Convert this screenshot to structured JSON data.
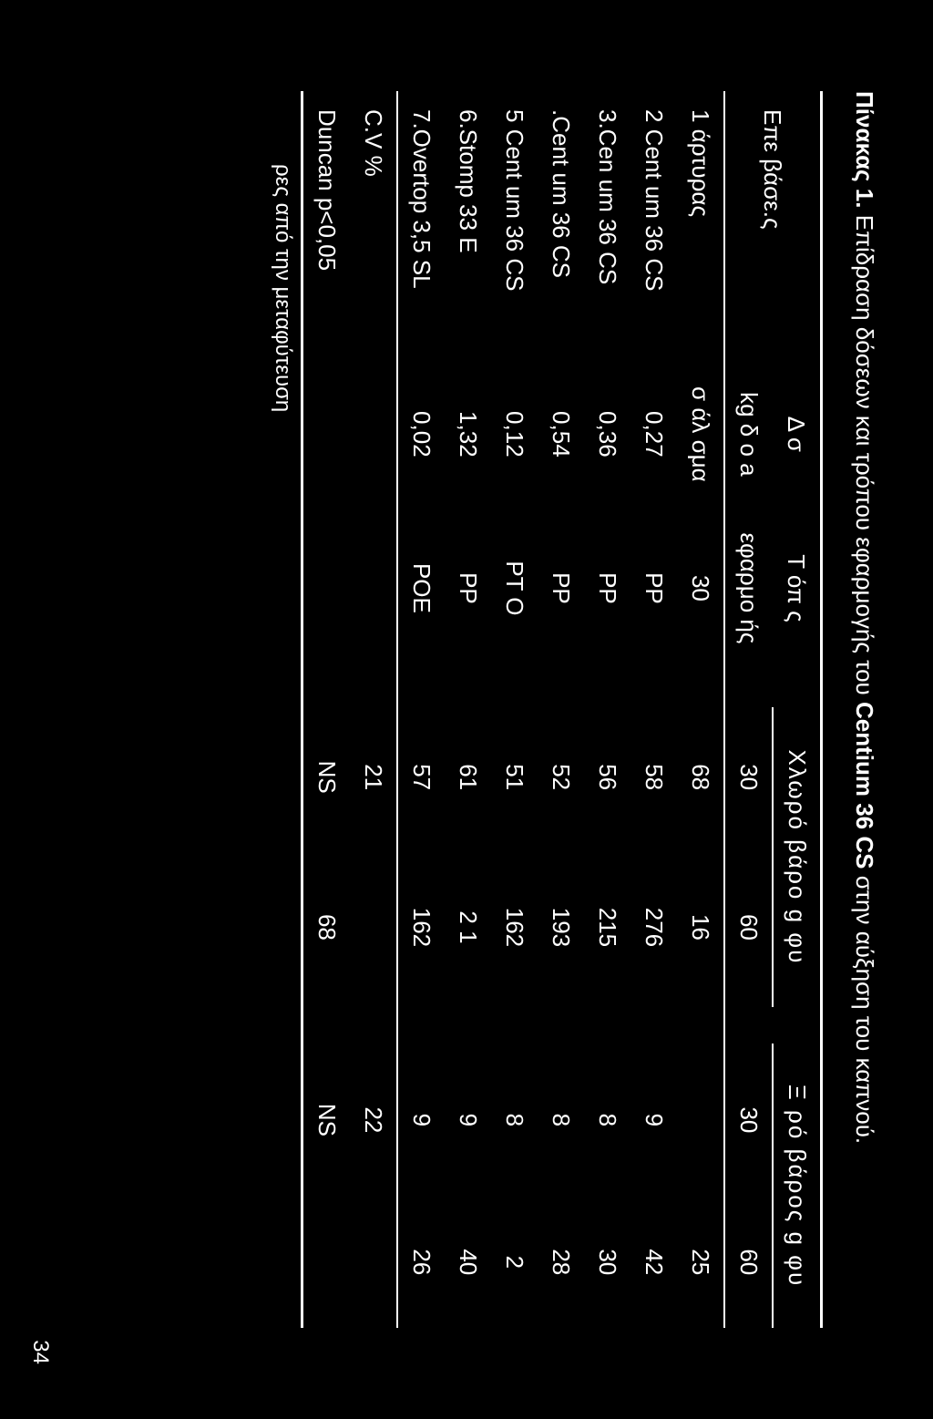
{
  "caption_prefix": "Πίνακας 1.",
  "caption_rest": " Επίδραση δόσεων και τρόπου εφαρμογής του ",
  "caption_bold": "Centium 36 CS",
  "caption_end": " στην αύξηση του καπνού.",
  "header": {
    "col1": "Επε βάσε.ς",
    "col2_line1": "Δ σ",
    "col2_line2": "kg δ ο   a",
    "col3_line1": "Τ  όπ  ς",
    "col3_line2": "εφαρμο  ής",
    "group1": "Χλωρό βάρο   g  φυ",
    "group2": "Ξ  ρό βάρος  g  φυ",
    "sub30": "30",
    "sub60": "60",
    "sub30_2": "30",
    "sub60_2": "60"
  },
  "rows": [
    {
      "name": "1   άρτυρας",
      "dose": "σ  άλ σμα",
      "app": "30",
      "c30": "68",
      "c60": "16",
      "d30": "",
      "d60": "25"
    },
    {
      "name": "2 Cent um 36 CS",
      "dose": "0,27",
      "app": "PP",
      "c30": "58",
      "c60": "276",
      "d30": "9",
      "d60": "42"
    },
    {
      "name": "3.Cen  um 36 CS",
      "dose": "0,36",
      "app": "PP",
      "c30": "56",
      "c60": "215",
      "d30": "8",
      "d60": "30"
    },
    {
      "name": " .Cent um 36 CS",
      "dose": "0,54",
      "app": "PP",
      "c30": "52",
      "c60": "193",
      "d30": "8",
      "d60": "28"
    },
    {
      "name": "5 Cent um 36 CS",
      "dose": "0,12",
      "app": "PT O",
      "c30": "51",
      "c60": "162",
      "d30": "8",
      "d60": "2"
    },
    {
      "name": "6.Stomp 33 E",
      "dose": "1,32",
      "app": "PP",
      "c30": "61",
      "c60": "2 1",
      "d30": "9",
      "d60": "40"
    },
    {
      "name": "7.Overtop 3,5 SL",
      "dose": "0,02",
      "app": "POE",
      "c30": "57",
      "c60": "162",
      "d30": "9",
      "d60": "26"
    }
  ],
  "cv_row": {
    "name": "C.V  %",
    "c30": "21",
    "c60": "",
    "d30": "22",
    "d60": ""
  },
  "duncan": {
    "name": "Duncan p<0,05",
    "c30": "NS",
    "c60": "68",
    "d30": "NS",
    "d60": ""
  },
  "footnote": "ρες από την μεταφύτευση",
  "page_number": "34"
}
